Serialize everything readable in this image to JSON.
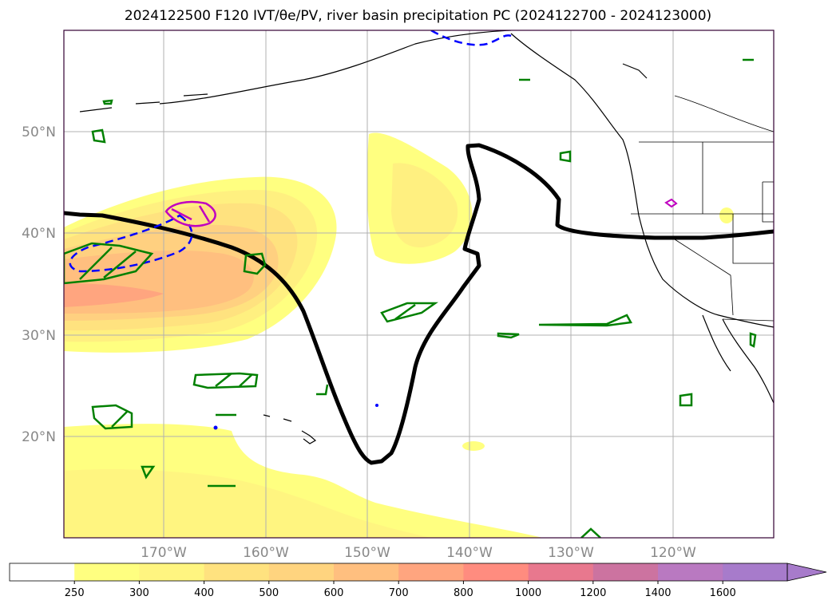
{
  "title": "2024122500 F120 IVT/θe/PV, river basin precipitation PC (2024122700 - 2024123000)",
  "map": {
    "lon_labels": [
      "170°W",
      "160°W",
      "150°W",
      "140°W",
      "130°W",
      "120°W"
    ],
    "lat_labels": [
      "50°N",
      "40°N",
      "30°N",
      "20°N"
    ]
  },
  "colorbar": {
    "ticks": [
      "250",
      "300",
      "400",
      "500",
      "600",
      "700",
      "800",
      "1000",
      "1200",
      "1400",
      "1600"
    ],
    "colors": [
      "#ffffff",
      "#ffff80",
      "#fff580",
      "#ffe27f",
      "#ffd47f",
      "#ffbf7f",
      "#ffa57f",
      "#ff8c7f",
      "#e8788e",
      "#cc73a0",
      "#b979c1",
      "#a77bcb"
    ]
  },
  "colors": {
    "frame": "#330033",
    "pv_contour": "#000000",
    "precip_contour": "#008000",
    "theta_dashed": "#0000ff",
    "magenta_contour": "#c000c0",
    "grid": "#b0b0b0"
  }
}
